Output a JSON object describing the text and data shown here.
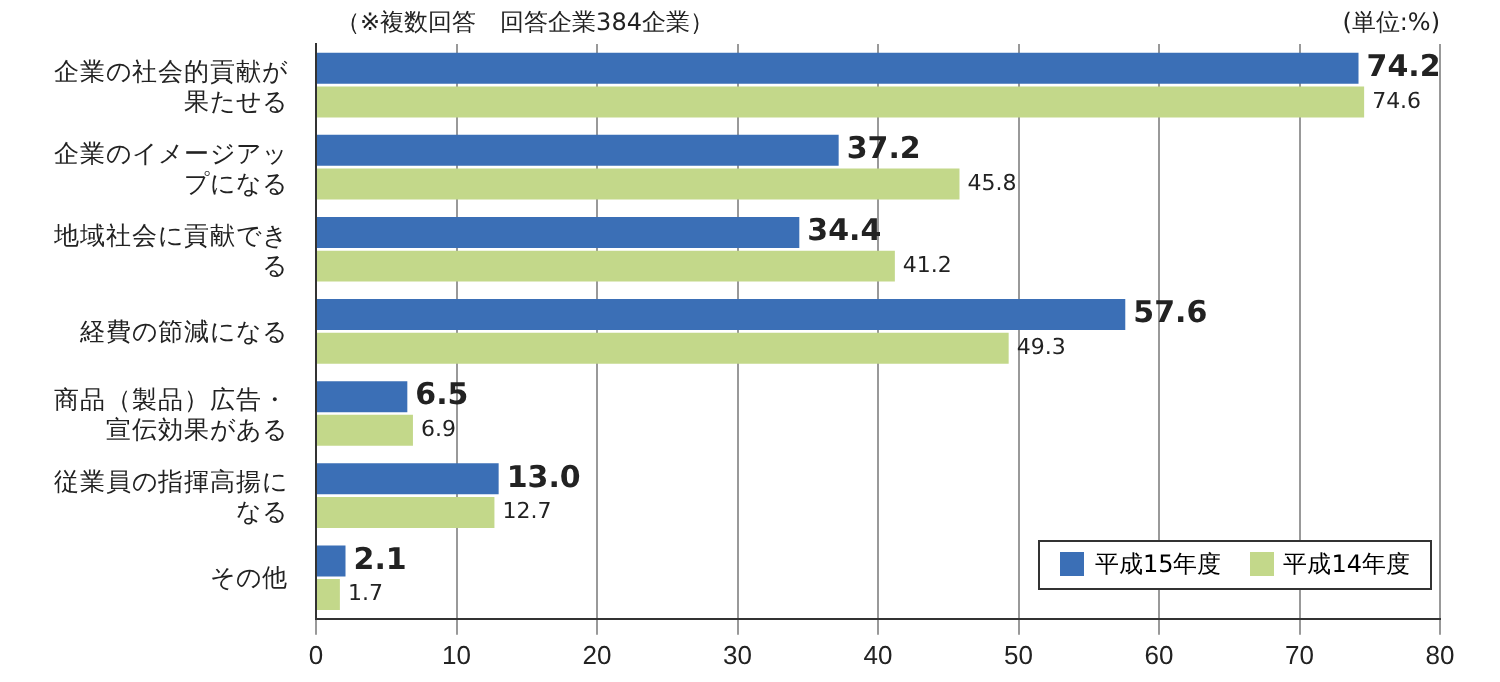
{
  "chart_data": {
    "type": "bar",
    "orientation": "horizontal",
    "categories": [
      "企業の社会的貢献が果たせる",
      "企業のイメージアップになる",
      "地域社会に貢献できる",
      "経費の節減になる",
      "商品（製品）広告・宣伝効果がある",
      "従業員の指揮高揚になる",
      "その他"
    ],
    "series": [
      {
        "name": "平成15年度",
        "color": "#3b6fb6",
        "values": [
          74.2,
          37.2,
          34.4,
          57.6,
          6.5,
          13.0,
          2.1
        ],
        "value_labels": [
          "74.2",
          "37.2",
          "34.4",
          "57.6",
          "6.5",
          "13.0",
          "2.1"
        ]
      },
      {
        "name": "平成14年度",
        "color": "#c3d88a",
        "values": [
          74.6,
          45.8,
          41.2,
          49.3,
          6.9,
          12.7,
          1.7
        ],
        "value_labels": [
          "74.6",
          "45.8",
          "41.2",
          "49.3",
          "6.9",
          "12.7",
          "1.7"
        ]
      }
    ],
    "xlim": [
      0,
      80
    ],
    "xticks": [
      0,
      10,
      20,
      30,
      40,
      50,
      60,
      70,
      80
    ],
    "grid": "x",
    "legend": "bottom right",
    "annotations": [
      "（※複数回答　回答企業384企業）",
      "(単位:%)"
    ]
  }
}
